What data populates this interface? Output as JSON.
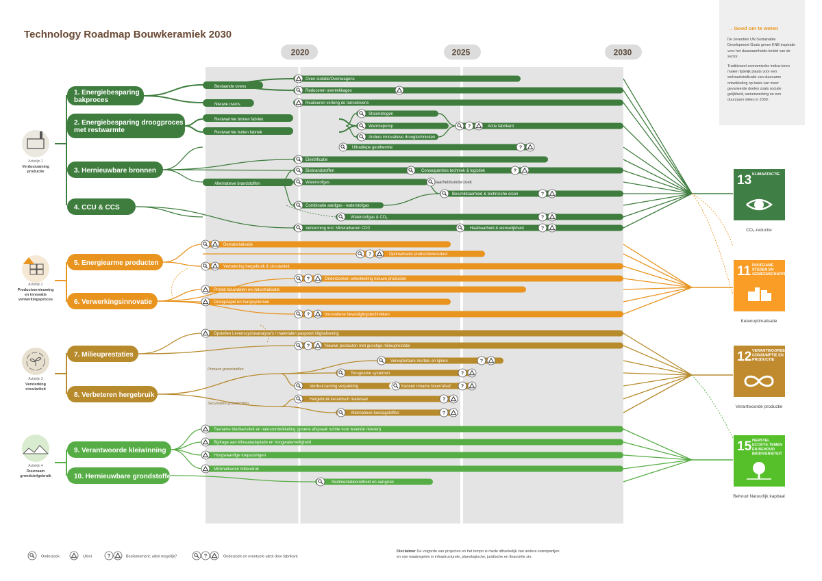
{
  "title": "Technology Roadmap Bouwkeramiek 2030",
  "years": [
    "2020",
    "2025",
    "2030"
  ],
  "info": {
    "heading": "Goed om te weten",
    "p1": "De zeventien UN Sustainable Development Goals geven KNB inspiratie voor het duurzaamheids-beleid van de sector.",
    "p2": "Traditioneel economische indica-toren maken tijdelijk plaats voor een welvaartsindicatie van duurzame ontwikkeling op basis van meer gevarieerde doelen zoals sociale gelijkheid, samenwerking en een duurzaam milieu in 2030."
  },
  "colors": {
    "dark_green": "#3e7d3e",
    "orange": "#e8941f",
    "brown": "#b78a2c",
    "light_green": "#56ac45",
    "sdg13": "#3f7e44",
    "sdg11": "#f99d26",
    "sdg12": "#bf8b2e",
    "sdg15": "#56c02b"
  },
  "actielijnen": [
    {
      "label": "Actielijn 1",
      "name": "Verduurzaming productie",
      "icon": "factory-icon"
    },
    {
      "label": "Actielijn 2",
      "name": "Productvernieuwing en innovatie verwerkingsproces",
      "icon": "bricks-icon"
    },
    {
      "label": "Actielijn 3",
      "name": "Versterking circulariteit",
      "icon": "plant-cycle-icon"
    },
    {
      "label": "Actielijn 4",
      "name": "Duurzaam grondstofgebruik",
      "icon": "landscape-icon"
    }
  ],
  "themes": [
    "1. Energiebesparing bakproces",
    "2. Energiebesparing droogproces met restwarmte",
    "3. Hernieuwbare bronnen",
    "4. CCU & CCS",
    "5. Energiearme producten",
    "6. Verwerkingsinnovatie",
    "7. Milieuprestaties",
    "8. Verbeteren hergebruik",
    "9. Verantwoorde kleiwinning",
    "10. Hernieuwbare grondstoffen"
  ],
  "branch_labels": [
    "Bestaande ovens",
    "Nieuwe ovens",
    "Restwarmte binnen fabriek",
    "Restwarmte buiten fabriek",
    "Alternatieve brandstoffen",
    "Primaire grondstoffen",
    "Secundaire grondstoffen"
  ],
  "tracks": [
    "Oven-isolatie/Ovenwagens",
    "Reduceren ovenlekkages",
    "Realiseren  verleng de tunnelovens",
    "Stoomdrogen",
    "Warmtepomp",
    "Andere innovatieve droogtechnieken",
    "Actie fabrikant",
    "Ultradiepe geothermie",
    "Elektrificatie",
    "Biobrandstoffen",
    "Consequenties techniek & logistiek",
    "Waterstofgas",
    "Haalbaarheidsonderzoek",
    "Beschikbaarheid & technische eisen",
    "Combinatie aardgas - waterstofgas",
    "Waterstofgas & CO₂",
    "Verkenning  incl. Mineraliseren CO2",
    "Haalbaarheid & wenselijkheid",
    "Dematerialisatie",
    "Optimalisatie productlevensduur",
    "Verbetering hergebruik & circulariteit",
    "Onderzoeken ontwikkeling nieuwe producten",
    "Prefab bouwdelen en industrialisatie",
    "Droogstapel en hangsystemen",
    "Innovatieve bevestigingstechnieken",
    "Opstellen Levenscyclusanalyse's / materialen paspoort /digitalisering",
    "Nieuwe producten met gunstige milieuprestatie",
    "Verwijderbare mortels en lijmen",
    "Terugname systemen",
    "Verduurzaming verpakking",
    "Kansen inname bouw'afval'",
    "Hergebruik keramisch materiaal",
    "Alternatieve toeslagstoffen",
    "Toename biodiversiteit en natuurontwikkeling  (groene afspraak ruimte voor levende rivieren)",
    "Bijdrage aan klimaatadaptatie en hoogwaterveiligheid",
    "Hoogwaardige toepassingen",
    "Minimaliseren milieudruk",
    "Sedimentatiesnelheid en aangroei"
  ],
  "sdgs": [
    {
      "num": "13",
      "title": "KLIMAATACTIE",
      "caption": "CO₂-reductie",
      "icon": "eye-globe-icon"
    },
    {
      "num": "11",
      "title": "DUURZAME STEDEN EN GEMEENSCHAPPEN",
      "caption": "Ketenoptimalisatie",
      "icon": "city-icon"
    },
    {
      "num": "12",
      "title": "VERANTWOORDE CONSUMPTIE EN PRODUCTIE",
      "caption": "Verantwoorde productie",
      "icon": "infinity-icon"
    },
    {
      "num": "15",
      "title": "HERSTEL ECOSYS-TEMEN EN BEHOUD BIODIVERSITEIT",
      "caption": "Behoud Natuurlijk kapitaal",
      "icon": "tree-icon"
    }
  ],
  "legend": [
    "Onderzoek",
    "Uitrol",
    "Beslismoment: uitrol mogelijk?",
    "Onderzoek en eventuele uitrol door fabrikant"
  ],
  "disclaimer": {
    "label": "Disclaimer",
    "text": "De volgorde van projecten en het tempo is mede afhankelijk van andere ketenpartijen en van maatregelen in infrastructurele, planologische,  juridische en financiële zin."
  }
}
